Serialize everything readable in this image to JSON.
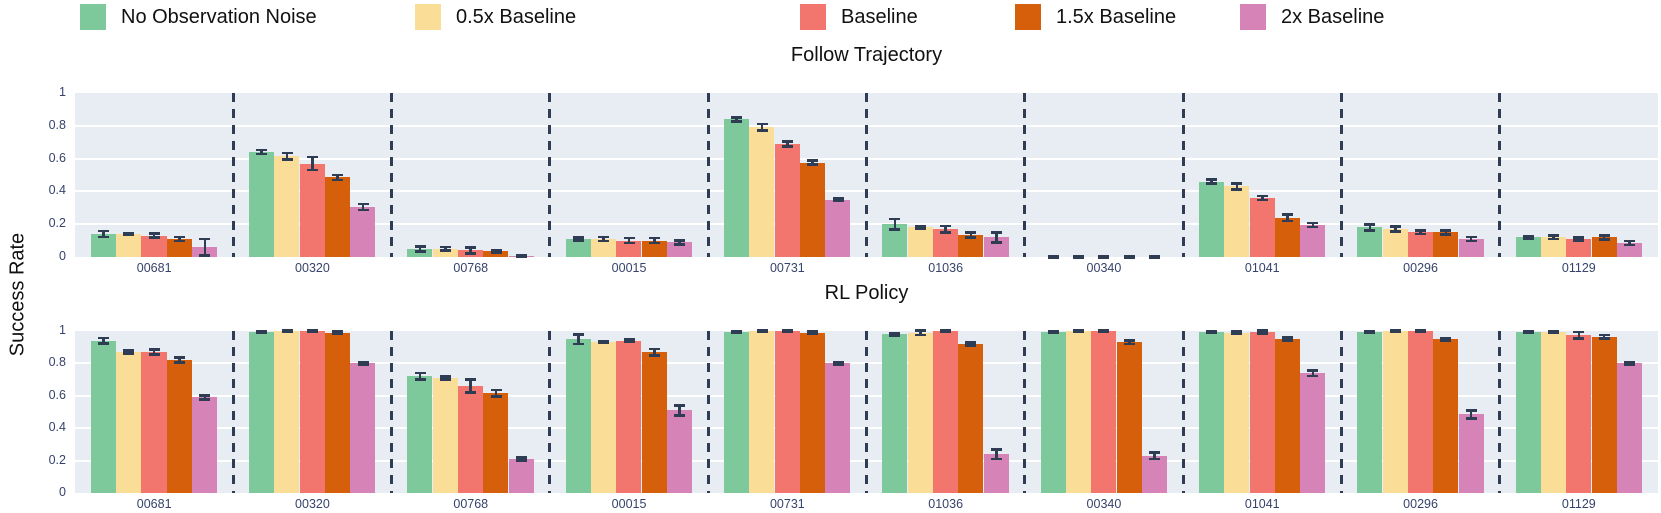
{
  "legend": {
    "items": [
      {
        "label": "No Observation Noise",
        "color": "#7EC99B"
      },
      {
        "label": "0.5x Baseline",
        "color": "#FADE98"
      },
      {
        "label": "Baseline",
        "color": "#F3766E"
      },
      {
        "label": "1.5x Baseline",
        "color": "#D55F0A"
      },
      {
        "label": "2x Baseline",
        "color": "#D683B7"
      }
    ]
  },
  "style_colors": {
    "panel_background": "#E8EDF3",
    "gridline": "#FFFFFF",
    "error_bar": "#2E3D54",
    "tick_label": "#36436B"
  },
  "chart_data": [
    {
      "type": "bar",
      "title": "Follow Trajectory",
      "ylabel": "Success Rate",
      "xlabel": "",
      "ylim": [
        0,
        1
      ],
      "grid": true,
      "legend_position": "top",
      "yticks": [
        {
          "value": 0,
          "label": "0"
        },
        {
          "value": 0.2,
          "label": "0.2"
        },
        {
          "value": 0.4,
          "label": "0.4"
        },
        {
          "value": 0.6,
          "label": "0.6"
        },
        {
          "value": 0.8,
          "label": "0.8"
        },
        {
          "value": 1,
          "label": "1"
        }
      ],
      "categories": [
        "00681",
        "00320",
        "00768",
        "00015",
        "00731",
        "01036",
        "00340",
        "01041",
        "00296",
        "01129"
      ],
      "series": [
        {
          "name": "No Observation Noise",
          "color": "#7EC99B",
          "values": [
            0.14,
            0.64,
            0.05,
            0.11,
            0.84,
            0.2,
            0.0,
            0.46,
            0.18,
            0.12
          ],
          "errors": [
            0.018,
            0.012,
            0.015,
            0.01,
            0.012,
            0.032,
            0.004,
            0.012,
            0.02,
            0.008
          ]
        },
        {
          "name": "0.5x Baseline",
          "color": "#FADE98",
          "values": [
            0.14,
            0.615,
            0.05,
            0.11,
            0.79,
            0.18,
            0.0,
            0.43,
            0.17,
            0.12
          ],
          "errors": [
            0.006,
            0.02,
            0.012,
            0.012,
            0.02,
            0.006,
            0.004,
            0.02,
            0.015,
            0.01
          ]
        },
        {
          "name": "Baseline",
          "color": "#F3766E",
          "values": [
            0.13,
            0.57,
            0.04,
            0.1,
            0.69,
            0.17,
            0.0,
            0.36,
            0.15,
            0.11
          ],
          "errors": [
            0.012,
            0.04,
            0.018,
            0.015,
            0.015,
            0.02,
            0.004,
            0.012,
            0.01,
            0.01
          ]
        },
        {
          "name": "1.5x Baseline",
          "color": "#D55F0A",
          "values": [
            0.11,
            0.485,
            0.035,
            0.1,
            0.575,
            0.135,
            0.0,
            0.24,
            0.15,
            0.12
          ],
          "errors": [
            0.012,
            0.015,
            0.006,
            0.015,
            0.012,
            0.015,
            0.004,
            0.02,
            0.012,
            0.012
          ]
        },
        {
          "name": "2x Baseline",
          "color": "#D683B7",
          "values": [
            0.06,
            0.305,
            0.005,
            0.09,
            0.35,
            0.12,
            0.0,
            0.195,
            0.11,
            0.085
          ],
          "errors": [
            0.05,
            0.018,
            0.006,
            0.012,
            0.008,
            0.03,
            0.004,
            0.012,
            0.012,
            0.012
          ]
        }
      ]
    },
    {
      "type": "bar",
      "title": "RL Policy",
      "ylabel": "Success Rate",
      "xlabel": "",
      "ylim": [
        0,
        1
      ],
      "grid": true,
      "legend_position": "top",
      "yticks": [
        {
          "value": 0,
          "label": "0"
        },
        {
          "value": 0.2,
          "label": "0.2"
        },
        {
          "value": 0.4,
          "label": "0.4"
        },
        {
          "value": 0.6,
          "label": "0.6"
        },
        {
          "value": 0.8,
          "label": "0.8"
        },
        {
          "value": 1,
          "label": "1"
        }
      ],
      "categories": [
        "00681",
        "00320",
        "00768",
        "00015",
        "00731",
        "01036",
        "00340",
        "01041",
        "00296",
        "01129"
      ],
      "series": [
        {
          "name": "No Observation Noise",
          "color": "#7EC99B",
          "values": [
            0.94,
            0.995,
            0.72,
            0.95,
            0.995,
            0.98,
            0.995,
            0.995,
            0.995,
            0.995
          ],
          "errors": [
            0.018,
            0.005,
            0.02,
            0.03,
            0.004,
            0.008,
            0.004,
            0.005,
            0.004,
            0.005
          ]
        },
        {
          "name": "0.5x Baseline",
          "color": "#FADE98",
          "values": [
            0.87,
            0.998,
            0.71,
            0.93,
            0.998,
            0.99,
            0.998,
            0.99,
            0.998,
            0.995
          ],
          "errors": [
            0.01,
            0.004,
            0.008,
            0.005,
            0.005,
            0.015,
            0.005,
            0.006,
            0.005,
            0.006
          ]
        },
        {
          "name": "Baseline",
          "color": "#F3766E",
          "values": [
            0.87,
            0.998,
            0.66,
            0.94,
            1.0,
            0.998,
            0.998,
            0.995,
            0.998,
            0.975
          ],
          "errors": [
            0.015,
            0.005,
            0.04,
            0.008,
            0.005,
            0.004,
            0.004,
            0.01,
            0.005,
            0.02
          ]
        },
        {
          "name": "1.5x Baseline",
          "color": "#D55F0A",
          "values": [
            0.82,
            0.99,
            0.615,
            0.87,
            0.99,
            0.92,
            0.93,
            0.95,
            0.95,
            0.965
          ],
          "errors": [
            0.015,
            0.006,
            0.02,
            0.02,
            0.006,
            0.008,
            0.01,
            0.01,
            0.008,
            0.01
          ]
        },
        {
          "name": "2x Baseline",
          "color": "#D683B7",
          "values": [
            0.59,
            0.8,
            0.21,
            0.51,
            0.8,
            0.24,
            0.23,
            0.74,
            0.485,
            0.8
          ],
          "errors": [
            0.012,
            0.006,
            0.008,
            0.03,
            0.008,
            0.03,
            0.02,
            0.018,
            0.025,
            0.008
          ]
        }
      ]
    }
  ]
}
